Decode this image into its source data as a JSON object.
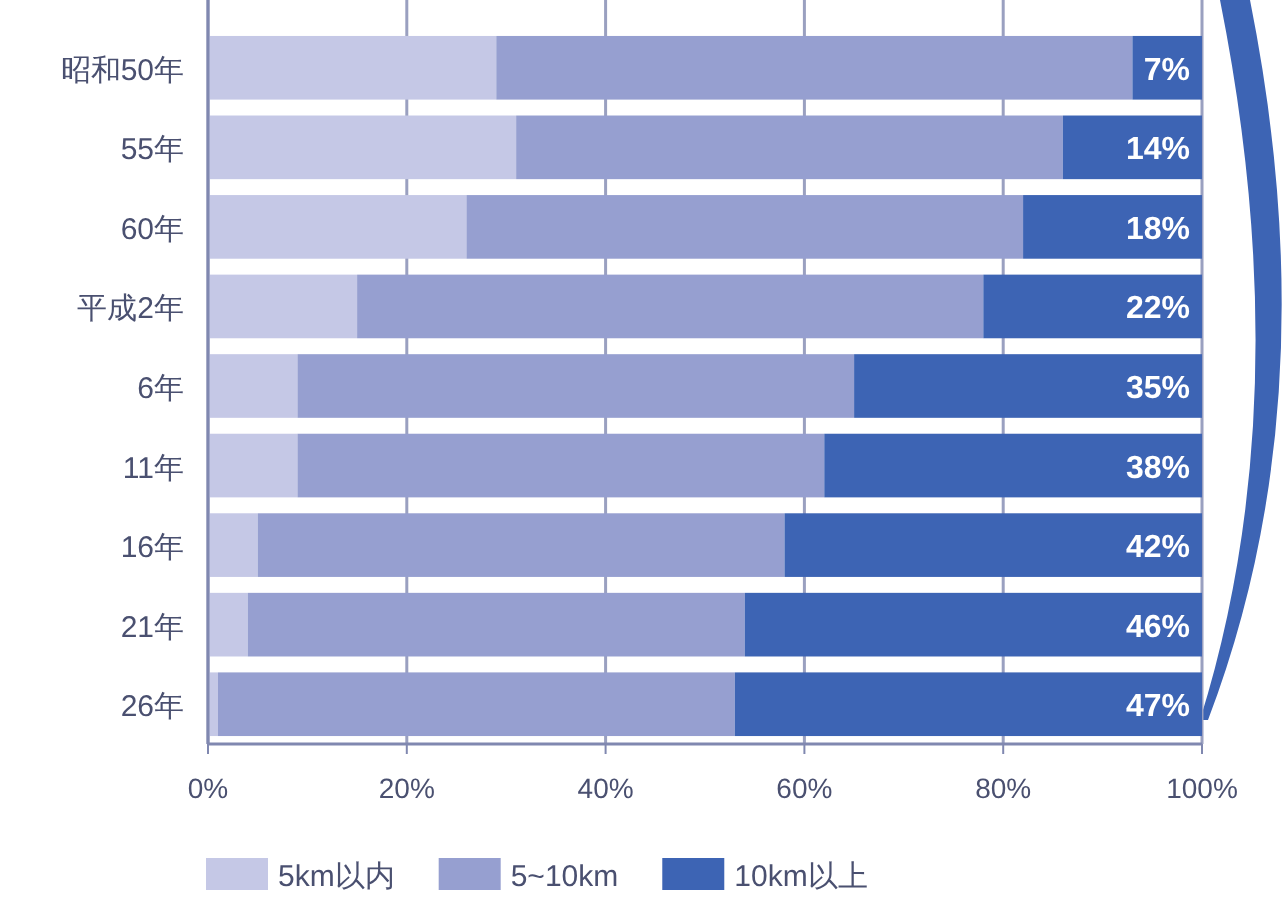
{
  "chart_data": {
    "type": "bar",
    "orientation": "horizontal",
    "stacked": true,
    "categories": [
      "昭和50年",
      "55年",
      "60年",
      "平成2年",
      "6年",
      "11年",
      "16年",
      "21年",
      "26年"
    ],
    "series": [
      {
        "name": "5km以内",
        "color": "#c5c8e6",
        "values": [
          29,
          31,
          26,
          15,
          9,
          9,
          5,
          4,
          1
        ]
      },
      {
        "name": "5~10km",
        "color": "#969fd0",
        "values": [
          64,
          55,
          56,
          63,
          56,
          53,
          53,
          50,
          52
        ]
      },
      {
        "name": "10km以上",
        "color": "#3d64b4",
        "values": [
          7,
          14,
          18,
          22,
          35,
          38,
          42,
          46,
          47
        ],
        "value_labels": [
          "7%",
          "14%",
          "18%",
          "22%",
          "35%",
          "38%",
          "42%",
          "46%",
          "47%"
        ]
      }
    ],
    "xlim": [
      0,
      100
    ],
    "xticks": [
      {
        "value": 0,
        "label": "0%"
      },
      {
        "value": 20,
        "label": "20%"
      },
      {
        "value": 40,
        "label": "40%"
      },
      {
        "value": 60,
        "label": "60%"
      },
      {
        "value": 80,
        "label": "80%"
      },
      {
        "value": 100,
        "label": "100%"
      }
    ],
    "grid": "x",
    "legend": "bottom"
  }
}
